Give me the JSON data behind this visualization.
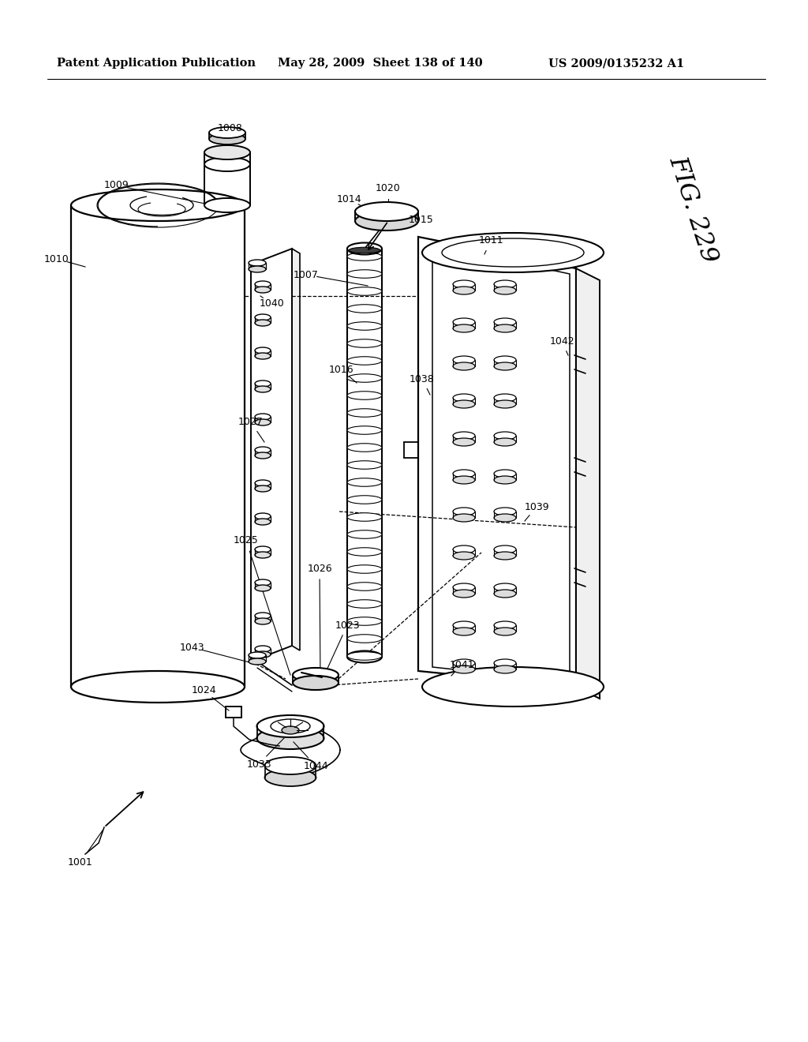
{
  "header_left": "Patent Application Publication",
  "header_mid": "May 28, 2009  Sheet 138 of 140",
  "header_right": "US 2009/0135232 A1",
  "fig_label": "FIG. 229",
  "bg_color": "#ffffff",
  "lc": "#000000",
  "lw_main": 1.5,
  "lw_thin": 0.9,
  "lw_dash": 0.8,
  "label_fs": 9,
  "header_fs": 10.5,
  "fig_fs": 23
}
